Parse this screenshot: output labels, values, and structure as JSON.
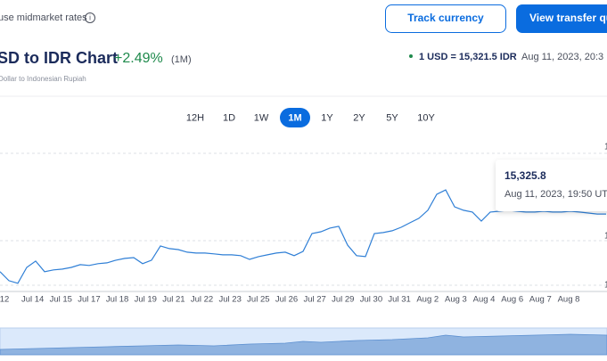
{
  "header": {
    "rate_note": "use midmarket rates",
    "buttons": [
      "Track currency",
      "View transfer qu"
    ]
  },
  "title": {
    "pair": "SD to IDR Chart",
    "change": "+2.49%",
    "period": "(1M)",
    "subtitle": "Dollar to Indonesian Rupiah"
  },
  "rate": {
    "text": "1 USD = 15,321.5 IDR",
    "time": "Aug 11, 2023, 20:3"
  },
  "ranges": [
    "12H",
    "1D",
    "1W",
    "1M",
    "1Y",
    "2Y",
    "5Y",
    "10Y"
  ],
  "selected_range": 3,
  "chart": {
    "type": "line",
    "color": "#2f7fd6",
    "ylim": [
      14810,
      15755
    ],
    "values": [
      14950,
      14894,
      14878,
      14977,
      15016,
      14950,
      14961,
      14966,
      14977,
      14994,
      14989,
      15000,
      15005,
      15022,
      15033,
      15038,
      15000,
      15022,
      15111,
      15094,
      15088,
      15072,
      15066,
      15066,
      15061,
      15055,
      15055,
      15050,
      15027,
      15044,
      15055,
      15066,
      15072,
      15050,
      15077,
      15188,
      15199,
      15222,
      15233,
      15116,
      15050,
      15044,
      15188,
      15194,
      15205,
      15227,
      15255,
      15283,
      15333,
      15433,
      15460,
      15355,
      15333,
      15322,
      15266,
      15322,
      15327,
      15333,
      15327,
      15322,
      15322,
      15327,
      15322,
      15322,
      15327,
      15322,
      15316,
      15310,
      15310
    ],
    "x_labels": [
      "12",
      "Jul 14",
      "Jul 15",
      "Jul 17",
      "Jul 18",
      "Jul 19",
      "Jul 21",
      "Jul 22",
      "Jul 23",
      "Jul 25",
      "Jul 26",
      "Jul 27",
      "Jul 29",
      "Jul 30",
      "Jul 31",
      "Aug 2",
      "Aug 3",
      "Aug 4",
      "Aug 6",
      "Aug 7",
      "Aug 8"
    ],
    "y_labels": [
      "1",
      "1",
      "1"
    ],
    "tooltip": {
      "value": "15,325.8",
      "time": "Aug 11, 2023, 19:50 UT"
    }
  }
}
